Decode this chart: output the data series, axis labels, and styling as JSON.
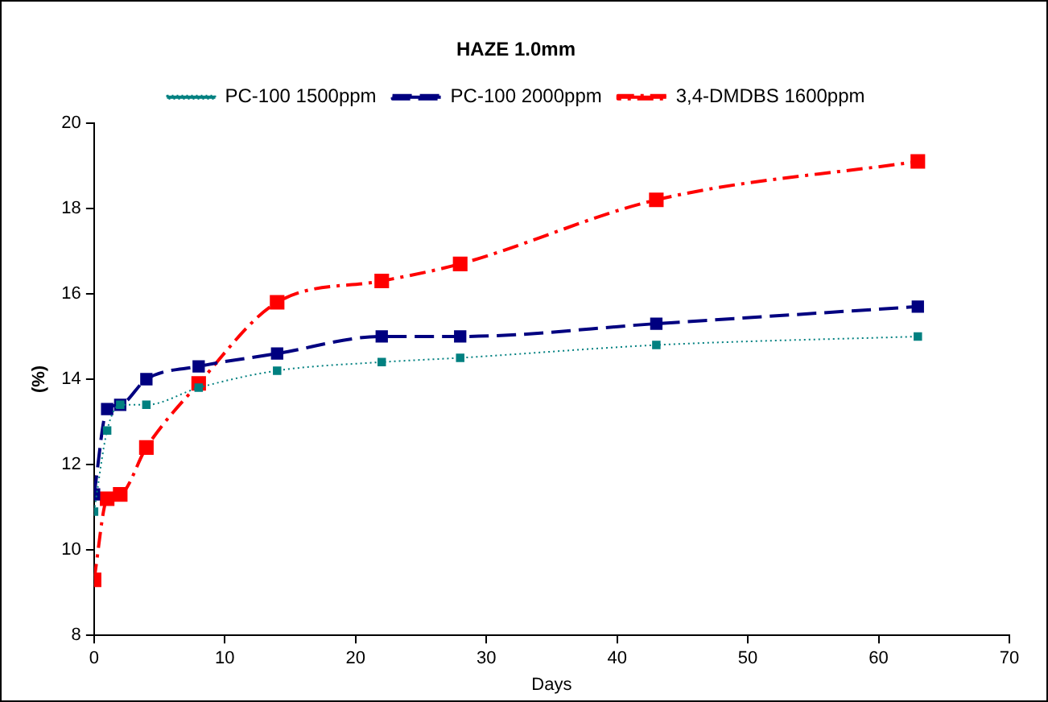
{
  "chart_data": {
    "type": "line",
    "title": "HAZE 1.0mm",
    "xlabel": "Days",
    "ylabel": "(%)",
    "xlim": [
      0,
      70
    ],
    "xticks": [
      0,
      10,
      20,
      30,
      40,
      50,
      60,
      70
    ],
    "ylim": [
      8,
      20
    ],
    "yticks": [
      8,
      10,
      12,
      14,
      16,
      18,
      20
    ],
    "grid": false,
    "legend": "top",
    "marker": "square",
    "x": [
      0,
      1,
      2,
      4,
      8,
      14,
      22,
      28,
      43,
      63
    ],
    "series": [
      {
        "name": "PC-100 1500ppm",
        "color": "#008080",
        "line_style": "dotted",
        "values": [
          10.9,
          12.8,
          13.4,
          13.4,
          13.8,
          14.2,
          14.4,
          14.5,
          14.8,
          15.0
        ]
      },
      {
        "name": "PC-100 2000ppm",
        "color": "#000080",
        "line_style": "dashed",
        "values": [
          11.3,
          13.3,
          13.4,
          14.0,
          14.3,
          14.6,
          15.0,
          15.0,
          15.3,
          15.7
        ]
      },
      {
        "name": "3,4-DMDBS 1600ppm",
        "color": "#ff0000",
        "line_style": "dashdot",
        "values": [
          9.3,
          11.2,
          11.3,
          12.4,
          13.9,
          15.8,
          16.3,
          16.7,
          18.2,
          19.1
        ]
      }
    ]
  }
}
